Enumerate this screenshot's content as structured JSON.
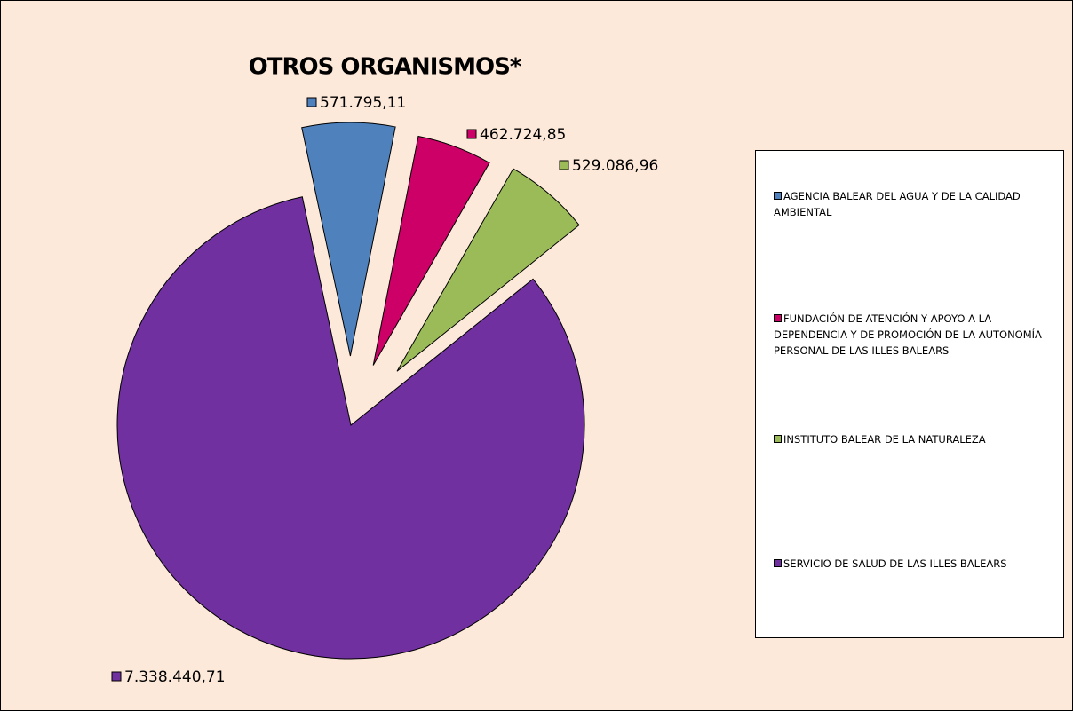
{
  "chart_data": {
    "type": "pie",
    "title": "OTROS ORGANISMOS*",
    "categories": [
      "AGENCIA BALEAR DEL AGUA Y DE LA CALIDAD AMBIENTAL",
      "FUNDACIÓN DE ATENCIÓN Y APOYO A LA DEPENDENCIA Y DE PROMOCIÓN DE LA AUTONOMÍA PERSONAL DE LAS ILLES BALEARS",
      "INSTITUTO BALEAR DE LA NATURALEZA",
      "SERVICIO DE SALUD DE LAS ILLES BALEARS"
    ],
    "values": [
      571795.11,
      462724.85,
      529086.96,
      7338440.71
    ],
    "value_labels": [
      "571.795,11",
      "462.724,85",
      "529.086,96",
      "7.338.440,71"
    ],
    "colors": [
      "#4f81bd",
      "#cc0066",
      "#9bbb59",
      "#7030a0"
    ],
    "legend": "right"
  }
}
